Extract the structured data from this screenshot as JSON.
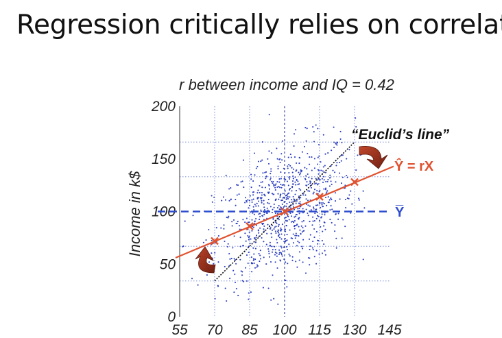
{
  "slide": {
    "title": "Regression critically relies on correlat"
  },
  "colors": {
    "points": "#2c3fbf",
    "regression_line": "#e0522f",
    "mean_line": "#2f4fd0",
    "euclid_line": "#111111",
    "arrow": "#8b2a1a",
    "grid_dotted": "#6a7fd6"
  },
  "chart_data": {
    "type": "scatter",
    "subtitle": "r between income and IQ = 0.42",
    "xlabel": "",
    "ylabel": "Income in k$",
    "xlim": [
      55,
      145
    ],
    "ylim": [
      0,
      200
    ],
    "xticks": [
      55,
      70,
      85,
      100,
      115,
      130,
      145
    ],
    "yticks": [
      0,
      50,
      100,
      150,
      200
    ],
    "grid": true,
    "legend": "none",
    "scatter_summary": {
      "n_points": 900,
      "x_mean": 100,
      "x_sd": 15,
      "y_mean": 100,
      "y_sd": 33,
      "correlation": 0.42
    },
    "regression_line": {
      "label": "Ŷ = rX",
      "points": [
        [
          70,
          72
        ],
        [
          85,
          86
        ],
        [
          100,
          100
        ],
        [
          115,
          114
        ],
        [
          130,
          128
        ]
      ]
    },
    "mean_line": {
      "label": "Y̅",
      "y": 100
    },
    "euclid_line": {
      "label": "“Euclid’s line”",
      "points": [
        [
          70,
          34
        ],
        [
          130,
          166
        ]
      ]
    },
    "dotted_guides": {
      "x": [
        70,
        85,
        115,
        130
      ],
      "y": [
        34,
        67,
        133,
        166
      ]
    }
  }
}
